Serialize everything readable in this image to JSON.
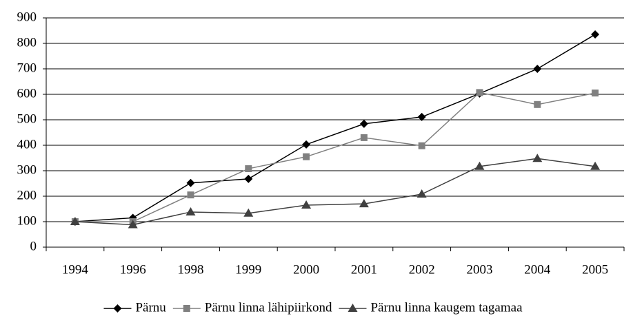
{
  "chart_data": {
    "type": "line",
    "categories": [
      "1994",
      "1996",
      "1998",
      "1999",
      "2000",
      "2001",
      "2002",
      "2003",
      "2004",
      "2005"
    ],
    "series": [
      {
        "name": "Pärnu",
        "color": "#000000",
        "marker": "diamond",
        "values": [
          100,
          115,
          252,
          268,
          403,
          484,
          511,
          603,
          700,
          835
        ]
      },
      {
        "name": "Pärnu linna lähipiirkond",
        "color": "#808080",
        "marker": "square",
        "values": [
          100,
          100,
          205,
          308,
          355,
          430,
          398,
          607,
          560,
          605
        ]
      },
      {
        "name": "Pärnu linna kaugem tagamaa",
        "color": "#404040",
        "marker": "triangle",
        "values": [
          100,
          88,
          138,
          133,
          165,
          170,
          208,
          317,
          348,
          317
        ]
      }
    ],
    "ylim": [
      0,
      900
    ],
    "yticks": [
      0,
      100,
      200,
      300,
      400,
      500,
      600,
      700,
      800,
      900
    ],
    "grid": true,
    "legend": "bottom"
  }
}
